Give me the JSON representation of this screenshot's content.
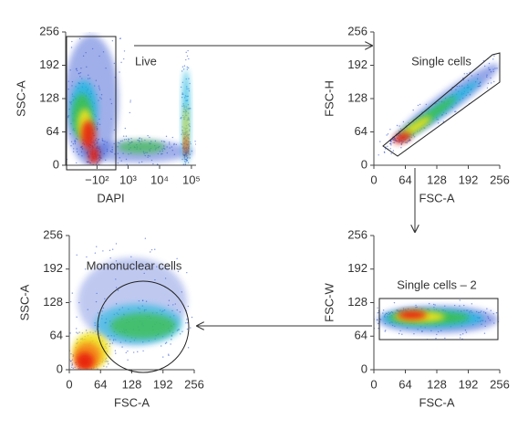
{
  "chart_data": [
    {
      "type": "density",
      "x_label": "DAPI",
      "y_label": "SSC-A",
      "xscale": "biexponential",
      "xlim": [
        -2000,
        140000
      ],
      "xticks": [
        {
          "value": -100,
          "label": "−10²"
        },
        {
          "value": 1000,
          "label": "10³"
        },
        {
          "value": 10000,
          "label": "10⁴"
        },
        {
          "value": 100000,
          "label": "10⁵"
        }
      ],
      "ylim": [
        0,
        256
      ],
      "yticks": [
        0,
        64,
        128,
        192,
        256
      ],
      "gate_label": "Live"
    },
    {
      "type": "density",
      "x_label": "FSC-A",
      "y_label": "FSC-H",
      "xscale": "linear",
      "xlim": [
        0,
        256
      ],
      "xticks": [
        0,
        64,
        128,
        192,
        256
      ],
      "ylim": [
        0,
        256
      ],
      "yticks": [
        0,
        64,
        128,
        192,
        256
      ],
      "gate_label": "Single cells"
    },
    {
      "type": "density",
      "x_label": "FSC-A",
      "y_label": "SSC-A",
      "xscale": "linear",
      "xlim": [
        0,
        256
      ],
      "xticks": [
        0,
        64,
        128,
        192,
        256
      ],
      "ylim": [
        0,
        256
      ],
      "yticks": [
        0,
        64,
        128,
        192,
        256
      ],
      "gate_label": "Mononuclear cells"
    },
    {
      "type": "density",
      "x_label": "FSC-A",
      "y_label": "FSC-W",
      "xscale": "linear",
      "xlim": [
        0,
        256
      ],
      "xticks": [
        0,
        64,
        128,
        192,
        256
      ],
      "ylim": [
        0,
        256
      ],
      "yticks": [
        0,
        64,
        128,
        192,
        256
      ],
      "gate_label": "Single cells – 2"
    }
  ]
}
